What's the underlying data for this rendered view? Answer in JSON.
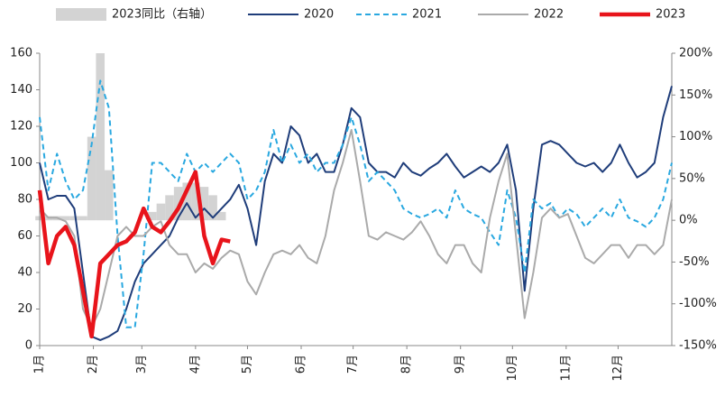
{
  "chart_data": {
    "type": "line",
    "x": [
      0,
      5,
      10,
      15,
      20,
      25,
      30,
      35,
      40,
      45,
      50,
      55,
      60,
      65,
      70,
      75,
      80,
      85,
      90,
      95,
      100,
      105,
      110,
      115,
      120,
      125,
      130,
      135,
      140,
      145,
      150,
      155,
      160,
      165,
      170,
      175,
      180,
      185,
      190,
      195,
      200,
      205,
      210,
      215,
      220,
      225,
      230,
      235,
      240,
      245,
      250,
      255,
      260,
      265,
      270,
      275,
      280,
      285,
      290,
      295,
      300,
      305,
      310,
      315,
      320,
      325,
      330,
      335,
      340,
      345,
      350,
      355,
      360,
      365
    ],
    "xlim": [
      0,
      365
    ],
    "xticks": [
      {
        "value": 0,
        "label": "1月"
      },
      {
        "value": 31,
        "label": "2月"
      },
      {
        "value": 59,
        "label": "3月"
      },
      {
        "value": 90,
        "label": "4月"
      },
      {
        "value": 120,
        "label": "5月"
      },
      {
        "value": 151,
        "label": "6月"
      },
      {
        "value": 181,
        "label": "7月"
      },
      {
        "value": 212,
        "label": "8月"
      },
      {
        "value": 243,
        "label": "9月"
      },
      {
        "value": 273,
        "label": "10月"
      },
      {
        "value": 304,
        "label": "11月"
      },
      {
        "value": 334,
        "label": "12月"
      }
    ],
    "ylim": [
      0,
      160
    ],
    "yticks": [
      0,
      20,
      40,
      60,
      80,
      100,
      120,
      140,
      160
    ],
    "y2lim": [
      -150,
      200
    ],
    "y2ticks": [
      {
        "value": -150,
        "label": "-150%"
      },
      {
        "value": -100,
        "label": "-100%"
      },
      {
        "value": -50,
        "label": "-50%"
      },
      {
        "value": 0,
        "label": "0%"
      },
      {
        "value": 50,
        "label": "50%"
      },
      {
        "value": 100,
        "label": "100%"
      },
      {
        "value": 150,
        "label": "150%"
      },
      {
        "value": 200,
        "label": "200%"
      }
    ],
    "legend": "top",
    "series": [
      {
        "name": "2023同比（右轴）",
        "type": "bar",
        "axis": "y2",
        "color": "#d3d3d3",
        "values": [
          5,
          5,
          5,
          5,
          5,
          5,
          100,
          200,
          60,
          0,
          0,
          0,
          0,
          10,
          20,
          30,
          40,
          45,
          45,
          40,
          30,
          10,
          0,
          null,
          null,
          null,
          null,
          null,
          null,
          null,
          null,
          null,
          null,
          null,
          null,
          null,
          null,
          null,
          null,
          null,
          null,
          null,
          null,
          null,
          null,
          null,
          null,
          null,
          null,
          null,
          null,
          null,
          null,
          null,
          null,
          null,
          null,
          null,
          null,
          null,
          null,
          null,
          null,
          null,
          null,
          null,
          null,
          null,
          null,
          null,
          null,
          null,
          null,
          null
        ]
      },
      {
        "name": "2020",
        "type": "line",
        "color": "#1f3d7a",
        "line_style": "solid",
        "values": [
          100,
          80,
          82,
          82,
          75,
          40,
          5,
          3,
          5,
          8,
          20,
          35,
          45,
          50,
          55,
          60,
          70,
          78,
          70,
          75,
          70,
          75,
          80,
          88,
          75,
          55,
          90,
          105,
          100,
          120,
          115,
          100,
          105,
          95,
          95,
          110,
          130,
          125,
          100,
          95,
          95,
          92,
          100,
          95,
          93,
          97,
          100,
          105,
          98,
          92,
          95,
          98,
          95,
          100,
          110,
          85,
          30,
          75,
          110,
          112,
          110,
          105,
          100,
          98,
          100,
          95,
          100,
          110,
          100,
          92,
          95,
          100,
          125,
          142
        ]
      },
      {
        "name": "2021",
        "type": "line",
        "color": "#29a8e0",
        "line_style": "dashed",
        "values": [
          125,
          85,
          105,
          90,
          80,
          85,
          110,
          145,
          130,
          60,
          10,
          10,
          50,
          100,
          100,
          95,
          90,
          105,
          95,
          100,
          95,
          100,
          105,
          100,
          80,
          85,
          95,
          118,
          100,
          110,
          100,
          105,
          95,
          100,
          100,
          110,
          125,
          110,
          90,
          95,
          90,
          85,
          75,
          72,
          70,
          72,
          75,
          70,
          85,
          75,
          72,
          70,
          62,
          55,
          85,
          70,
          40,
          80,
          75,
          78,
          70,
          75,
          72,
          65,
          70,
          75,
          70,
          80,
          70,
          68,
          65,
          70,
          80,
          100
        ]
      },
      {
        "name": "2022",
        "type": "line",
        "color": "#aaaaaa",
        "line_style": "solid",
        "values": [
          75,
          70,
          70,
          68,
          60,
          20,
          10,
          20,
          40,
          60,
          65,
          60,
          60,
          65,
          68,
          55,
          50,
          50,
          40,
          45,
          42,
          48,
          52,
          50,
          35,
          28,
          40,
          50,
          52,
          50,
          55,
          48,
          45,
          60,
          85,
          100,
          118,
          90,
          60,
          58,
          62,
          60,
          58,
          62,
          68,
          60,
          50,
          45,
          55,
          55,
          45,
          40,
          70,
          90,
          105,
          60,
          15,
          40,
          70,
          75,
          70,
          72,
          60,
          48,
          45,
          50,
          55,
          55,
          48,
          55,
          55,
          50,
          55,
          80
        ]
      },
      {
        "name": "2023",
        "type": "line",
        "color": "#e8141b",
        "line_style": "thick",
        "values": [
          85,
          45,
          60,
          65,
          55,
          30,
          5,
          45,
          50,
          55,
          57,
          62,
          75,
          65,
          62,
          68,
          75,
          85,
          95,
          60,
          45,
          58,
          57,
          null,
          null,
          null,
          null,
          null,
          null,
          null,
          null,
          null,
          null,
          null,
          null,
          null,
          null,
          null,
          null,
          null,
          null,
          null,
          null,
          null,
          null,
          null,
          null,
          null,
          null,
          null,
          null,
          null,
          null,
          null,
          null,
          null,
          null,
          null,
          null,
          null,
          null,
          null,
          null,
          null,
          null,
          null,
          null,
          null,
          null,
          null,
          null,
          null,
          null,
          null
        ]
      }
    ]
  }
}
